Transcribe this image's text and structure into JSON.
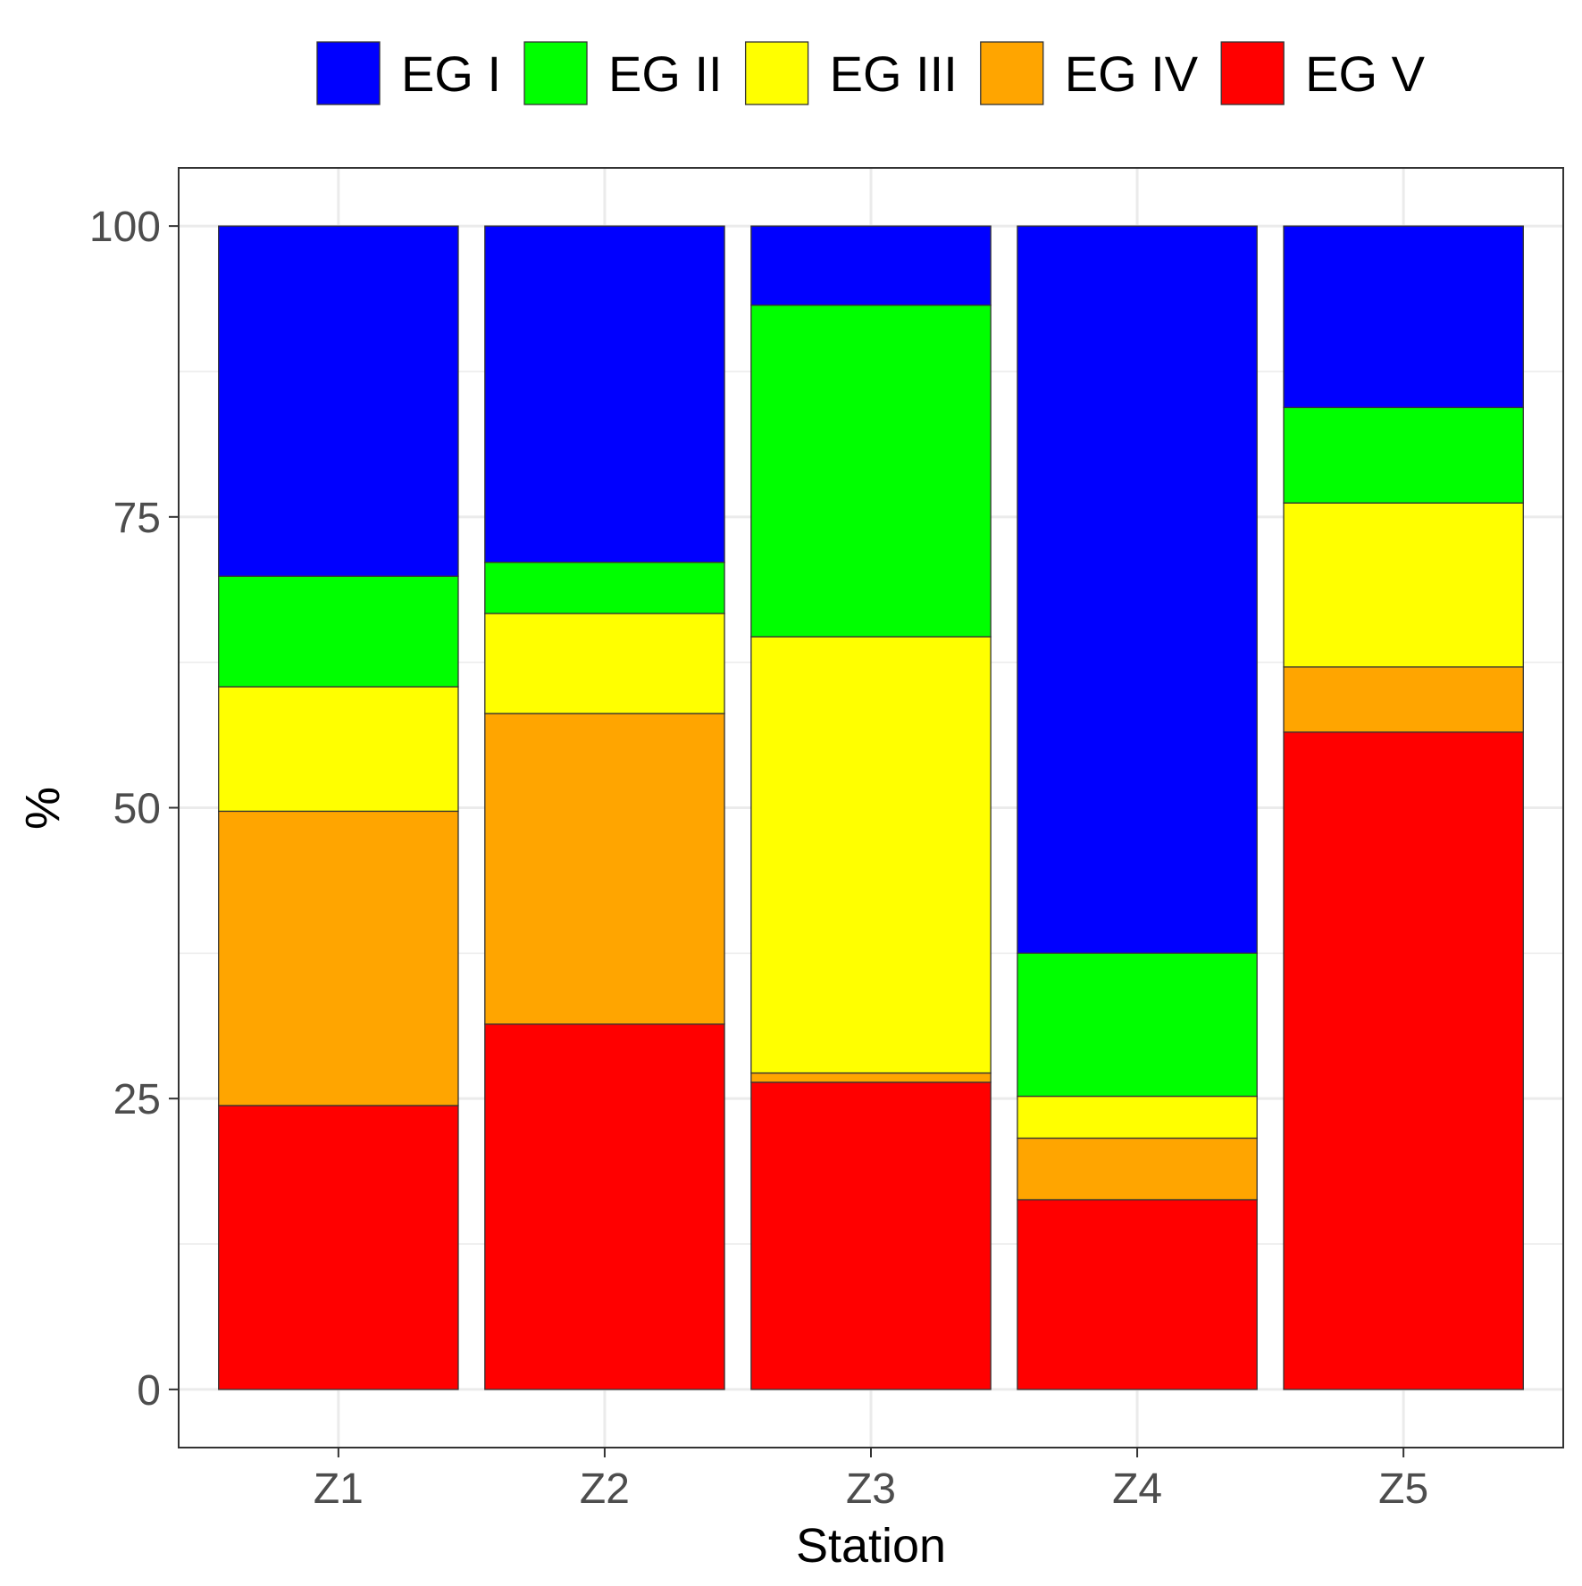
{
  "chart_data": {
    "type": "bar",
    "stacked": true,
    "categories": [
      "Z1",
      "Z2",
      "Z3",
      "Z4",
      "Z5"
    ],
    "series": [
      {
        "name": "EG V",
        "color": "#FF0000",
        "values": [
          24.4,
          31.4,
          26.4,
          16.3,
          56.5
        ]
      },
      {
        "name": "EG IV",
        "color": "#FFA500",
        "values": [
          25.3,
          26.7,
          0.8,
          5.3,
          5.6
        ]
      },
      {
        "name": "EG III",
        "color": "#FFFF00",
        "values": [
          10.7,
          8.6,
          37.5,
          3.6,
          14.1
        ]
      },
      {
        "name": "EG II",
        "color": "#00FF00",
        "values": [
          9.5,
          4.4,
          28.5,
          12.3,
          8.2
        ]
      },
      {
        "name": "EG I",
        "color": "#0000FF",
        "values": [
          30.1,
          28.9,
          6.8,
          62.5,
          15.6
        ]
      }
    ],
    "legend_order": [
      "EG I",
      "EG II",
      "EG III",
      "EG IV",
      "EG V"
    ],
    "xlabel": "Station",
    "ylabel": "%",
    "ylim": [
      -5,
      105
    ],
    "yticks": [
      0,
      25,
      50,
      75,
      100
    ],
    "grid": true,
    "legend_position": "top"
  }
}
